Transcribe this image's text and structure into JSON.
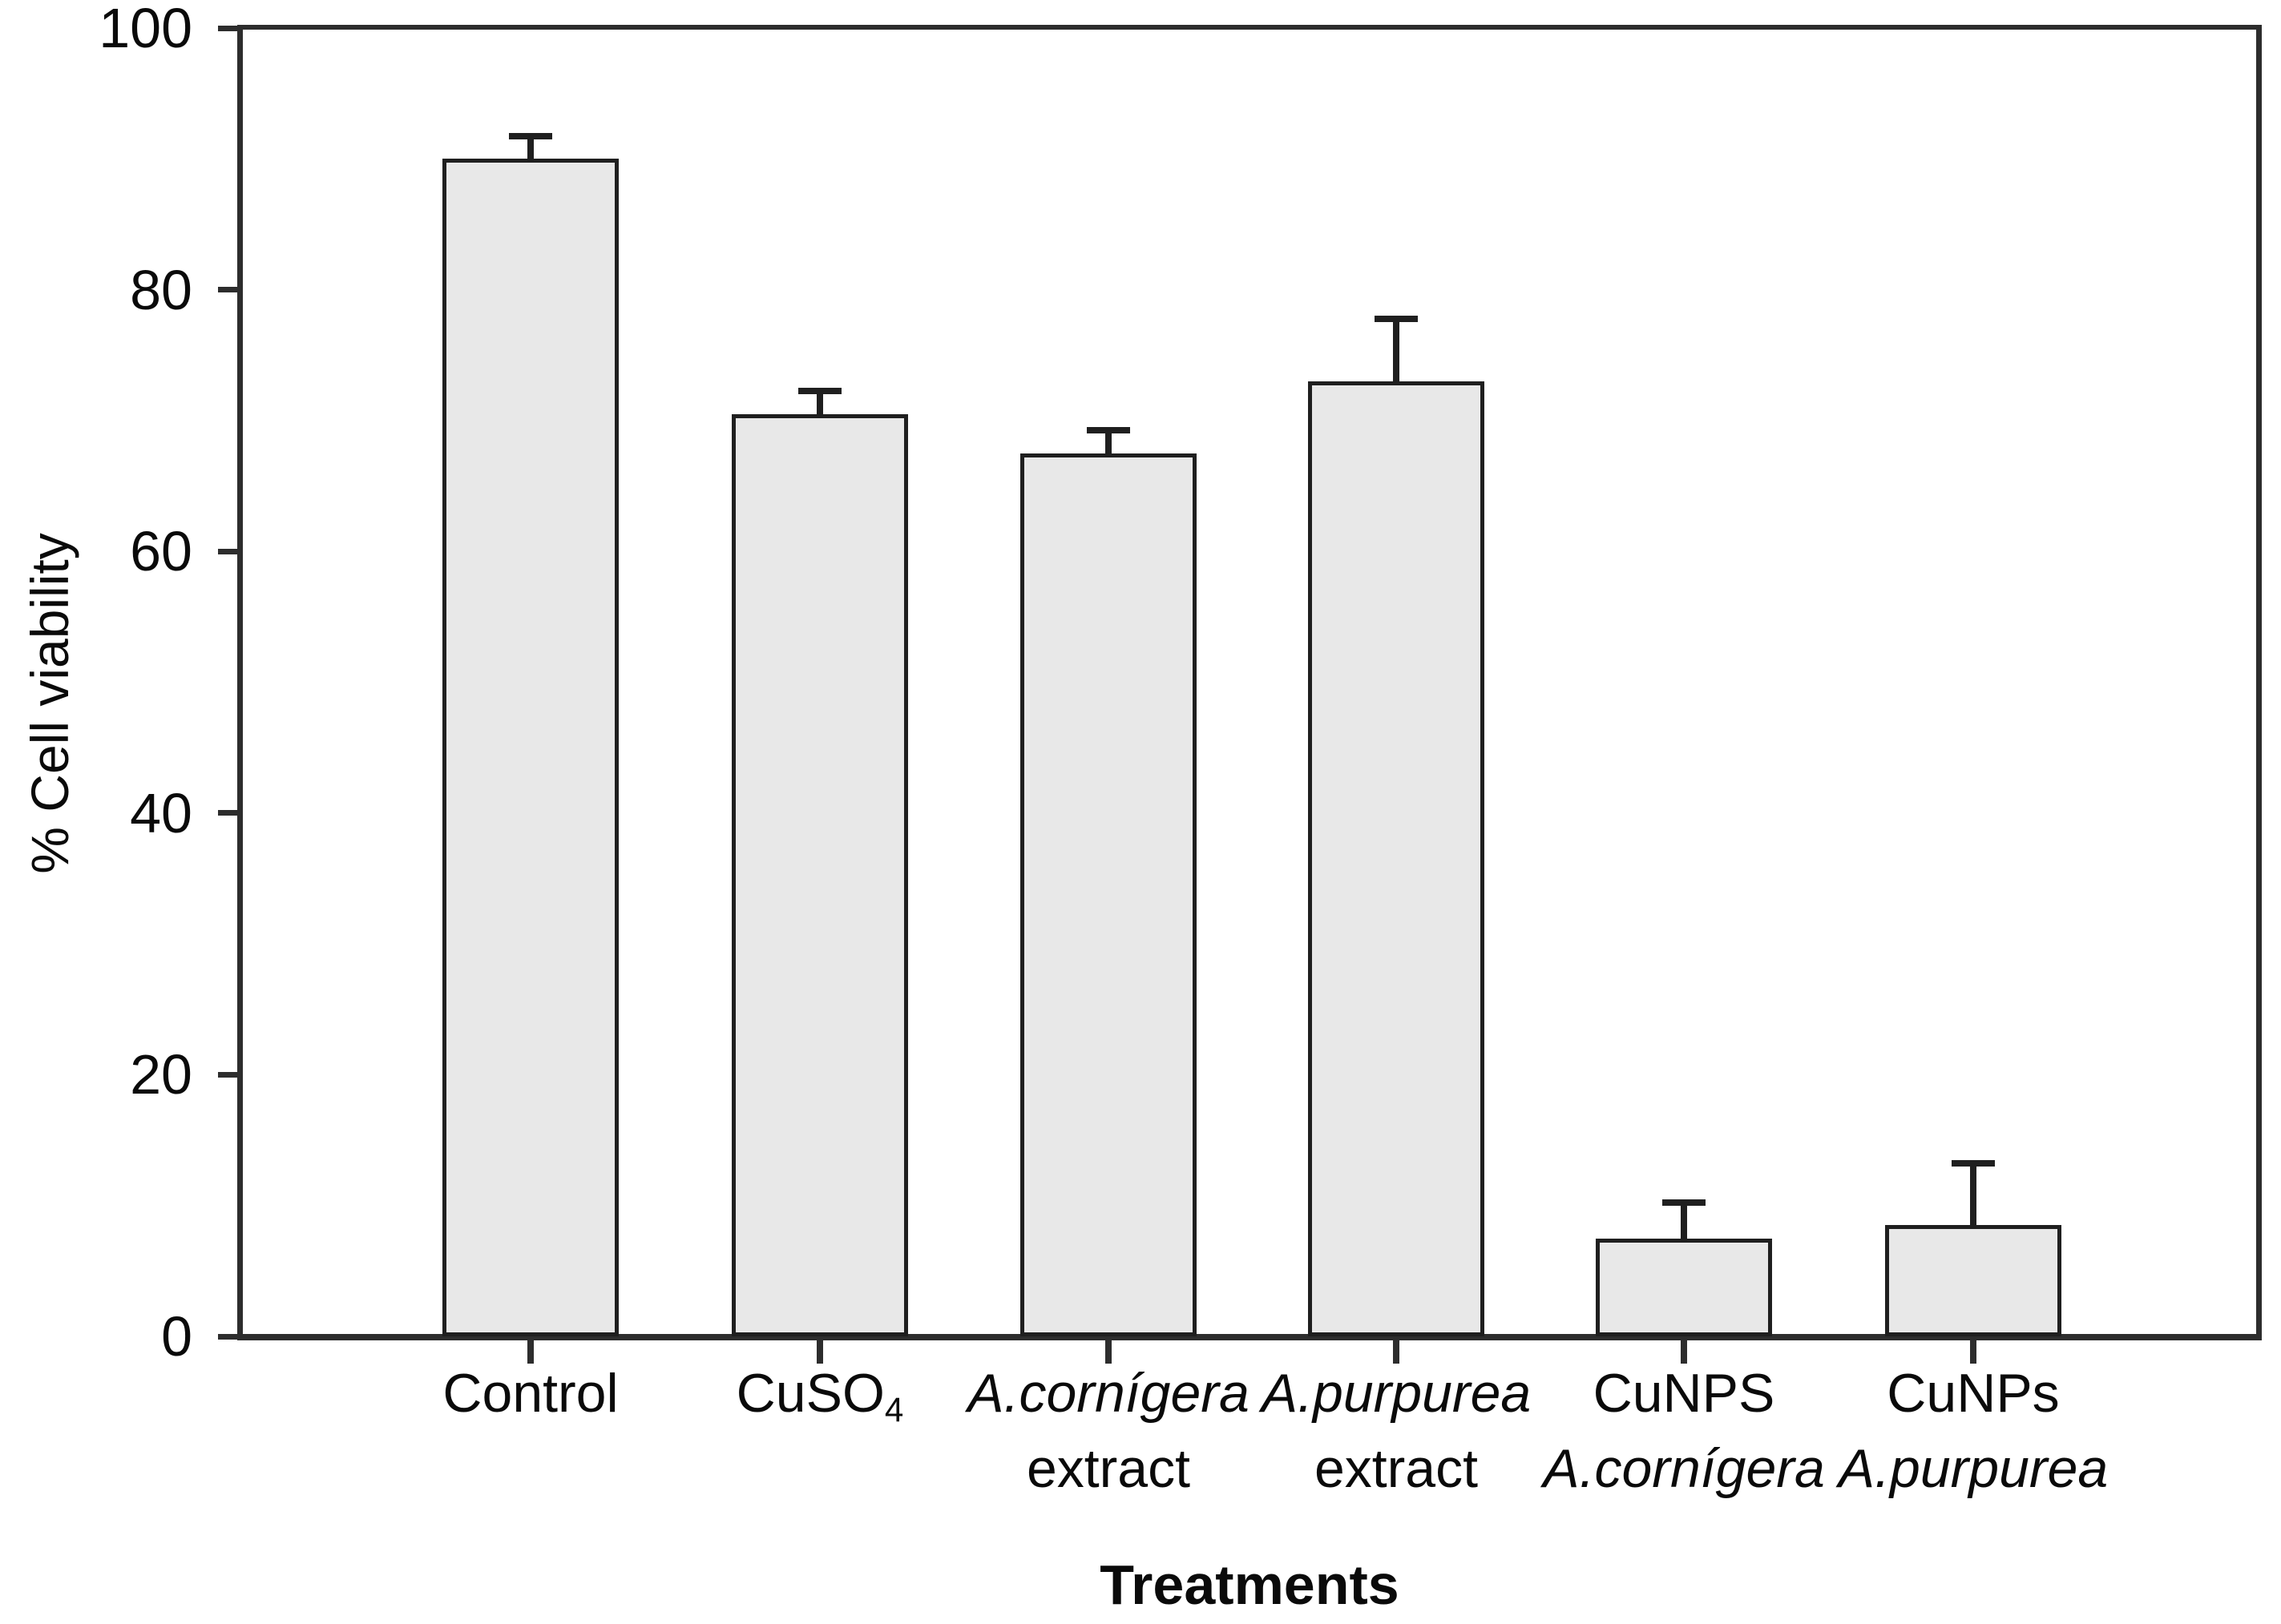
{
  "figure": {
    "background": "#ffffff"
  },
  "chart_data": {
    "type": "bar",
    "title": "",
    "xlabel": "Treatments",
    "ylabel": "% Cell viability",
    "ylim": [
      0,
      100
    ],
    "yticks": [
      100,
      80,
      60,
      40,
      20,
      0
    ],
    "grid": false,
    "legend": false,
    "bar_fill_color": "#e8e8e8",
    "bar_border_color": "#1f1f1f",
    "axis_color": "#2d2d2d",
    "error_bar_color": "#1f1f1f",
    "text_color": "#0a0a0a",
    "categories": [
      {
        "name": "control",
        "lines": [
          [
            {
              "t": "Control"
            }
          ]
        ]
      },
      {
        "name": "cuso4",
        "lines": [
          [
            {
              "t": "CuSO"
            },
            {
              "t": "4",
              "sub": true
            }
          ]
        ]
      },
      {
        "name": "a-cornigera-extract",
        "lines": [
          [
            {
              "t": "A.cornígera",
              "italic": true
            }
          ],
          [
            {
              "t": "extract"
            }
          ]
        ]
      },
      {
        "name": "a-purpurea-extract",
        "lines": [
          [
            {
              "t": "A.purpurea",
              "italic": true
            }
          ],
          [
            {
              "t": "extract"
            }
          ]
        ]
      },
      {
        "name": "cunps-a-cornigera",
        "lines": [
          [
            {
              "t": "CuNPS"
            }
          ],
          [
            {
              "t": "A.cornígera",
              "italic": true
            }
          ]
        ]
      },
      {
        "name": "cunps-a-purpurea",
        "lines": [
          [
            {
              "t": "CuNPs"
            }
          ],
          [
            {
              "t": "A.purpurea",
              "italic": true
            }
          ]
        ]
      }
    ],
    "values": [
      90,
      70.5,
      67.5,
      73,
      7.5,
      8.5
    ],
    "errors_upper": [
      2,
      2,
      2,
      5,
      3,
      5
    ]
  }
}
